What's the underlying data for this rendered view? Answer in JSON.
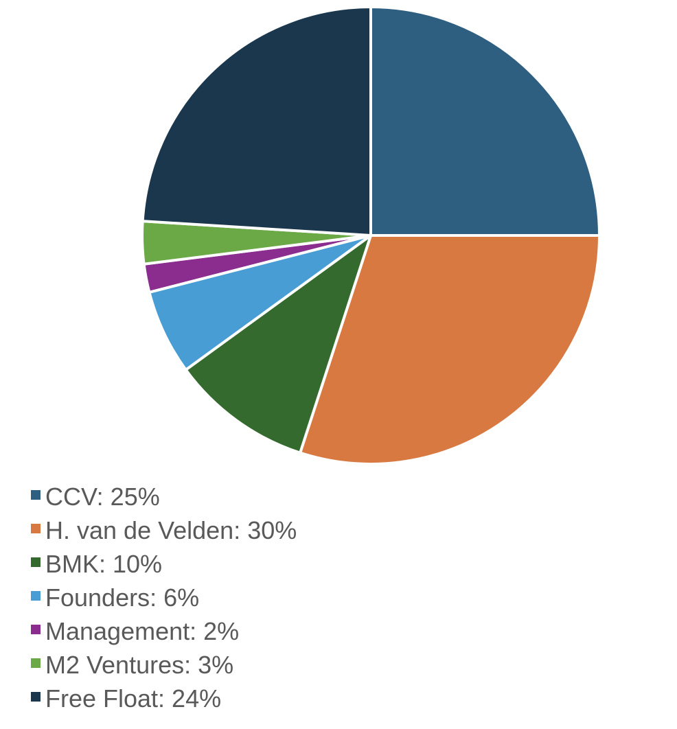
{
  "chart_data": {
    "type": "pie",
    "title": "",
    "legend_position": "bottom-left",
    "slices": [
      {
        "label": "CCV: 25%",
        "name": "CCV",
        "value": 25,
        "color": "#2E5F80"
      },
      {
        "label": "H. van de Velden: 30%",
        "name": "H. van de Velden",
        "value": 30,
        "color": "#D97942"
      },
      {
        "label": "BMK: 10%",
        "name": "BMK",
        "value": 10,
        "color": "#356A2E"
      },
      {
        "label": "Founders: 6%",
        "name": "Founders",
        "value": 6,
        "color": "#489ED4"
      },
      {
        "label": "Management: 2%",
        "name": "Management",
        "value": 2,
        "color": "#8B2D8F"
      },
      {
        "label": "M2 Ventures: 3%",
        "name": "M2 Ventures",
        "value": 3,
        "color": "#6BA846"
      },
      {
        "label": "Free Float: 24%",
        "name": "Free Float",
        "value": 24,
        "color": "#1B374D"
      }
    ]
  }
}
